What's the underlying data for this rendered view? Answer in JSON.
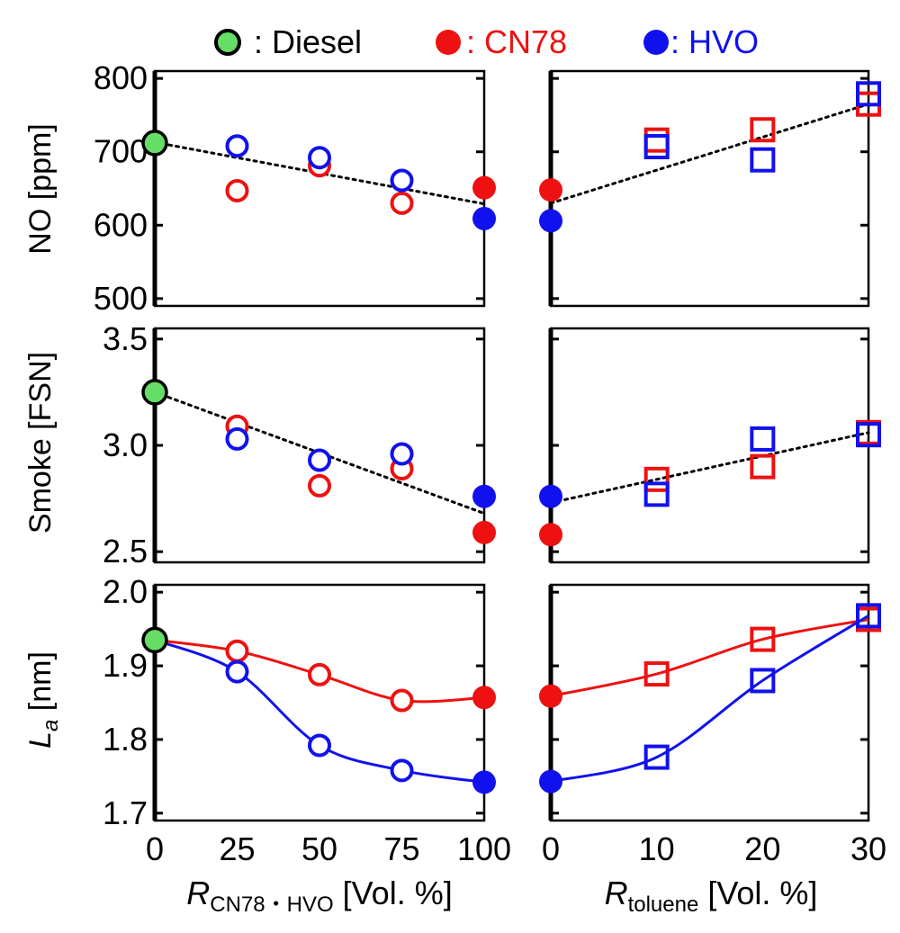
{
  "legend": [
    {
      "label": ": Diesel",
      "color": "#000000",
      "fill": "#66dd66"
    },
    {
      "label": ": CN78",
      "color": "#ee1111",
      "fill": "#ee1111"
    },
    {
      "label": ": HVO",
      "color": "#1111ee",
      "fill": "#1111ee"
    }
  ],
  "colors": {
    "diesel": "#66dd66",
    "cn78": "#ee1111",
    "hvo": "#1111ee"
  },
  "x_axes": {
    "left": {
      "label_main": "R",
      "label_sub": "CN78・HVO",
      "label_rest": " [Vol. %]",
      "ticks": [
        0,
        25,
        50,
        75,
        100
      ],
      "tick_labels": [
        "0",
        "25",
        "50",
        "75",
        "100"
      ]
    },
    "right": {
      "label_main": "R",
      "label_sub": "toluene",
      "label_rest": " [Vol. %]",
      "ticks": [
        0,
        10,
        20,
        30
      ],
      "tick_labels": [
        "0",
        "10",
        "20",
        "30"
      ]
    }
  },
  "chart_data": [
    {
      "type": "scatter",
      "row": "NO",
      "ylabel": "NO [ppm]",
      "ylim": [
        490,
        810
      ],
      "yticks": [
        500,
        600,
        700,
        800
      ],
      "ytick_labels": [
        "500",
        "600",
        "700",
        "800"
      ],
      "left": {
        "xlim": [
          0,
          100
        ],
        "series": [
          {
            "name": "Diesel",
            "marker": "circle-filled",
            "color": "diesel",
            "x": [
              0
            ],
            "y": [
              712
            ]
          },
          {
            "name": "CN78",
            "marker": "circle-filled",
            "color": "cn78",
            "x": [
              100
            ],
            "y": [
              651
            ]
          },
          {
            "name": "HVO",
            "marker": "circle-filled",
            "color": "hvo",
            "x": [
              100
            ],
            "y": [
              609
            ]
          },
          {
            "name": "",
            "marker": "circle-open",
            "color": "cn78",
            "x": [
              25,
              50,
              75
            ],
            "y": [
              647,
              681,
              630
            ]
          },
          {
            "name": "",
            "marker": "circle-open",
            "color": "hvo",
            "x": [
              25,
              50,
              75
            ],
            "y": [
              708,
              692,
              661
            ]
          }
        ],
        "trend": {
          "style": "dotted",
          "x": [
            0,
            100
          ],
          "y": [
            713,
            629
          ]
        }
      },
      "right": {
        "xlim": [
          0,
          30
        ],
        "series": [
          {
            "name": "CN78",
            "marker": "circle-filled",
            "color": "cn78",
            "x": [
              0
            ],
            "y": [
              648
            ]
          },
          {
            "name": "HVO",
            "marker": "circle-filled",
            "color": "hvo",
            "x": [
              0
            ],
            "y": [
              606
            ]
          },
          {
            "name": "",
            "marker": "square-open",
            "color": "cn78",
            "x": [
              10,
              20,
              30
            ],
            "y": [
              716,
              730,
              765
            ]
          },
          {
            "name": "",
            "marker": "square-open",
            "color": "hvo",
            "x": [
              10,
              20,
              30
            ],
            "y": [
              707,
              689,
              779
            ]
          }
        ],
        "trend": {
          "style": "dotted",
          "x": [
            0,
            30
          ],
          "y": [
            630,
            765
          ]
        }
      }
    },
    {
      "type": "scatter",
      "row": "Smoke",
      "ylabel": "Smoke [FSN]",
      "ylim": [
        2.45,
        3.55
      ],
      "yticks": [
        2.5,
        3.0,
        3.5
      ],
      "ytick_labels": [
        "2.5",
        "3.0",
        "3.5"
      ],
      "left": {
        "xlim": [
          0,
          100
        ],
        "series": [
          {
            "name": "Diesel",
            "marker": "circle-filled",
            "color": "diesel",
            "x": [
              0
            ],
            "y": [
              3.25
            ]
          },
          {
            "name": "HVO",
            "marker": "circle-filled",
            "color": "hvo",
            "x": [
              100
            ],
            "y": [
              2.76
            ]
          },
          {
            "name": "CN78",
            "marker": "circle-filled",
            "color": "cn78",
            "x": [
              100
            ],
            "y": [
              2.59
            ]
          },
          {
            "name": "",
            "marker": "circle-open",
            "color": "cn78",
            "x": [
              25,
              50,
              75
            ],
            "y": [
              3.09,
              2.81,
              2.89
            ]
          },
          {
            "name": "",
            "marker": "circle-open",
            "color": "hvo",
            "x": [
              25,
              50,
              75
            ],
            "y": [
              3.03,
              2.93,
              2.96
            ]
          }
        ],
        "trend": {
          "style": "dotted",
          "x": [
            0,
            100
          ],
          "y": [
            3.25,
            2.68
          ]
        }
      },
      "right": {
        "xlim": [
          0,
          30
        ],
        "series": [
          {
            "name": "HVO",
            "marker": "circle-filled",
            "color": "hvo",
            "x": [
              0
            ],
            "y": [
              2.76
            ]
          },
          {
            "name": "CN78",
            "marker": "circle-filled",
            "color": "cn78",
            "x": [
              0
            ],
            "y": [
              2.58
            ]
          },
          {
            "name": "",
            "marker": "square-open",
            "color": "cn78",
            "x": [
              10,
              20,
              30
            ],
            "y": [
              2.84,
              2.9,
              3.06
            ]
          },
          {
            "name": "",
            "marker": "square-open",
            "color": "hvo",
            "x": [
              10,
              20,
              30
            ],
            "y": [
              2.77,
              3.03,
              3.05
            ]
          }
        ],
        "trend": {
          "style": "dotted",
          "x": [
            0,
            30
          ],
          "y": [
            2.73,
            3.06
          ]
        }
      }
    },
    {
      "type": "line",
      "row": "La",
      "ylabel_main": "L",
      "ylabel_sub": "a",
      "ylabel_rest": " [nm]",
      "ylim": [
        1.69,
        2.01
      ],
      "yticks": [
        1.7,
        1.8,
        1.9,
        2.0
      ],
      "ytick_labels": [
        "1.7",
        "1.8",
        "1.9",
        "2.0"
      ],
      "left": {
        "xlim": [
          0,
          100
        ],
        "series": [
          {
            "name": "",
            "marker": "circle-open",
            "color": "cn78",
            "line": true,
            "x": [
              0,
              25,
              50,
              75,
              100
            ],
            "y": [
              1.935,
              1.92,
              1.888,
              1.853,
              1.857
            ],
            "open_index": [
              1,
              2,
              3
            ]
          },
          {
            "name": "",
            "marker": "circle-open",
            "color": "hvo",
            "line": true,
            "x": [
              0,
              25,
              50,
              75,
              100
            ],
            "y": [
              1.935,
              1.892,
              1.792,
              1.758,
              1.742
            ],
            "open_index": [
              1,
              2,
              3
            ]
          },
          {
            "name": "Diesel",
            "marker": "circle-filled",
            "color": "diesel",
            "x": [
              0
            ],
            "y": [
              1.935
            ]
          },
          {
            "name": "CN78",
            "marker": "circle-filled",
            "color": "cn78",
            "x": [
              100
            ],
            "y": [
              1.857
            ]
          },
          {
            "name": "HVO",
            "marker": "circle-filled",
            "color": "hvo",
            "x": [
              100
            ],
            "y": [
              1.742
            ]
          }
        ]
      },
      "right": {
        "xlim": [
          0,
          30
        ],
        "series": [
          {
            "name": "",
            "marker": "square-open",
            "color": "cn78",
            "line": true,
            "x": [
              0,
              10,
              20,
              30
            ],
            "y": [
              1.859,
              1.889,
              1.936,
              1.963
            ],
            "open_index": [
              1,
              2,
              3
            ]
          },
          {
            "name": "",
            "marker": "square-open",
            "color": "hvo",
            "line": true,
            "x": [
              0,
              10,
              20,
              30
            ],
            "y": [
              1.743,
              1.776,
              1.88,
              1.968
            ],
            "open_index": [
              1,
              2,
              3
            ]
          },
          {
            "name": "CN78",
            "marker": "circle-filled",
            "color": "cn78",
            "x": [
              0
            ],
            "y": [
              1.859
            ]
          },
          {
            "name": "HVO",
            "marker": "circle-filled",
            "color": "hvo",
            "x": [
              0
            ],
            "y": [
              1.743
            ]
          }
        ]
      }
    }
  ]
}
